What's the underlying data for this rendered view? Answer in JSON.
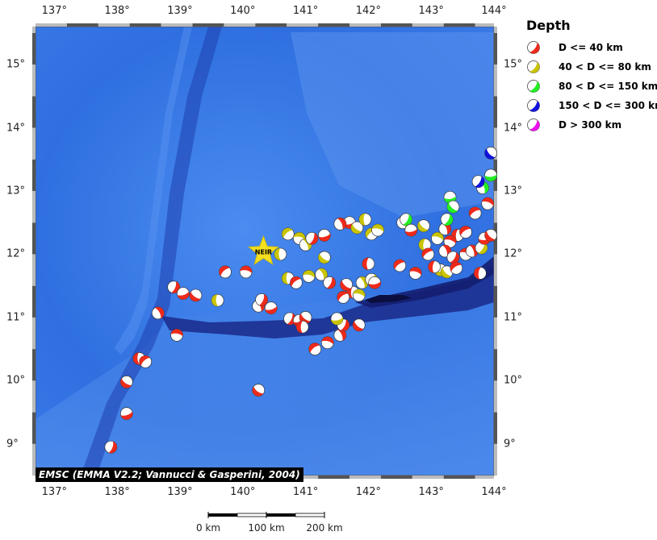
{
  "map": {
    "lon_range": [
      136.7,
      144.0
    ],
    "lat_range": [
      8.5,
      15.6
    ],
    "lon_ticks": [
      "137°",
      "138°",
      "139°",
      "140°",
      "141°",
      "142°",
      "143°",
      "144°"
    ],
    "lat_ticks": [
      "9°",
      "10°",
      "11°",
      "12°",
      "13°",
      "14°",
      "15°"
    ],
    "credit": "EMSC (EMMA V2.2; Vannucci & Gasperini, 2004)",
    "station": {
      "name": "NEIR",
      "lon": 140.33,
      "lat": 12.04
    },
    "colors": {
      "ocean": "#2f6fe0",
      "deep": "#1c2a8c",
      "shallow": "#6aa0f0"
    }
  },
  "legend": {
    "title": "Depth",
    "items": [
      {
        "label": "D <= 40 km",
        "color": "#ee2a1a"
      },
      {
        "label": "40 < D <= 80 km",
        "color": "#c9c400"
      },
      {
        "label": "80 < D <= 150 km",
        "color": "#22ee22"
      },
      {
        "label": "150 < D <= 300 km",
        "color": "#1111dd"
      },
      {
        "label": "D > 300 km",
        "color": "#ee11ee"
      }
    ]
  },
  "scale_bar": {
    "labels": [
      "0 km",
      "100 km",
      "200 km"
    ]
  },
  "events": [
    {
      "lon": 137.9,
      "lat": 8.95,
      "d": "a"
    },
    {
      "lon": 138.15,
      "lat": 9.48,
      "d": "a"
    },
    {
      "lon": 138.15,
      "lat": 9.98,
      "d": "a"
    },
    {
      "lon": 138.35,
      "lat": 10.35,
      "d": "a"
    },
    {
      "lon": 138.45,
      "lat": 10.3,
      "d": "a"
    },
    {
      "lon": 138.95,
      "lat": 10.72,
      "d": "a"
    },
    {
      "lon": 138.65,
      "lat": 11.07,
      "d": "a"
    },
    {
      "lon": 138.9,
      "lat": 11.48,
      "d": "a"
    },
    {
      "lon": 139.05,
      "lat": 11.38,
      "d": "a"
    },
    {
      "lon": 139.25,
      "lat": 11.35,
      "d": "a"
    },
    {
      "lon": 139.6,
      "lat": 11.27,
      "d": "b"
    },
    {
      "lon": 139.72,
      "lat": 11.72,
      "d": "a"
    },
    {
      "lon": 140.05,
      "lat": 11.72,
      "d": "a"
    },
    {
      "lon": 140.25,
      "lat": 11.18,
      "d": "a"
    },
    {
      "lon": 140.3,
      "lat": 11.28,
      "d": "a"
    },
    {
      "lon": 140.45,
      "lat": 11.15,
      "d": "a"
    },
    {
      "lon": 140.25,
      "lat": 9.85,
      "d": "a"
    },
    {
      "lon": 140.6,
      "lat": 12.0,
      "d": "b"
    },
    {
      "lon": 140.72,
      "lat": 12.32,
      "d": "b"
    },
    {
      "lon": 140.9,
      "lat": 12.25,
      "d": "b"
    },
    {
      "lon": 141.0,
      "lat": 12.15,
      "d": "b"
    },
    {
      "lon": 141.1,
      "lat": 12.25,
      "d": "a"
    },
    {
      "lon": 141.3,
      "lat": 12.3,
      "d": "a"
    },
    {
      "lon": 141.3,
      "lat": 11.95,
      "d": "b"
    },
    {
      "lon": 140.72,
      "lat": 11.62,
      "d": "b"
    },
    {
      "lon": 140.85,
      "lat": 11.55,
      "d": "a"
    },
    {
      "lon": 141.05,
      "lat": 11.65,
      "d": "b"
    },
    {
      "lon": 141.25,
      "lat": 11.68,
      "d": "b"
    },
    {
      "lon": 141.38,
      "lat": 11.55,
      "d": "a"
    },
    {
      "lon": 141.7,
      "lat": 12.5,
      "d": "a"
    },
    {
      "lon": 141.82,
      "lat": 12.42,
      "d": "b"
    },
    {
      "lon": 141.95,
      "lat": 12.55,
      "d": "b"
    },
    {
      "lon": 142.05,
      "lat": 12.32,
      "d": "b"
    },
    {
      "lon": 142.15,
      "lat": 12.38,
      "d": "b"
    },
    {
      "lon": 141.55,
      "lat": 12.48,
      "d": "a"
    },
    {
      "lon": 140.75,
      "lat": 10.98,
      "d": "a"
    },
    {
      "lon": 140.9,
      "lat": 10.95,
      "d": "a"
    },
    {
      "lon": 141.0,
      "lat": 11.0,
      "d": "a"
    },
    {
      "lon": 140.95,
      "lat": 10.85,
      "d": "a"
    },
    {
      "lon": 141.15,
      "lat": 10.5,
      "d": "a"
    },
    {
      "lon": 141.35,
      "lat": 10.6,
      "d": "a"
    },
    {
      "lon": 141.55,
      "lat": 10.72,
      "d": "a"
    },
    {
      "lon": 141.6,
      "lat": 10.88,
      "d": "a"
    },
    {
      "lon": 141.5,
      "lat": 10.98,
      "d": "b"
    },
    {
      "lon": 141.85,
      "lat": 10.88,
      "d": "a"
    },
    {
      "lon": 141.75,
      "lat": 11.4,
      "d": "a"
    },
    {
      "lon": 141.6,
      "lat": 11.32,
      "d": "a"
    },
    {
      "lon": 141.85,
      "lat": 11.35,
      "d": "b"
    },
    {
      "lon": 141.9,
      "lat": 11.55,
      "d": "b"
    },
    {
      "lon": 142.05,
      "lat": 11.6,
      "d": "b"
    },
    {
      "lon": 142.1,
      "lat": 11.55,
      "d": "a"
    },
    {
      "lon": 141.65,
      "lat": 11.52,
      "d": "a"
    },
    {
      "lon": 142.0,
      "lat": 11.85,
      "d": "a"
    },
    {
      "lon": 142.5,
      "lat": 11.82,
      "d": "a"
    },
    {
      "lon": 142.75,
      "lat": 11.7,
      "d": "a"
    },
    {
      "lon": 142.55,
      "lat": 12.5,
      "d": "b"
    },
    {
      "lon": 142.6,
      "lat": 12.55,
      "d": "c"
    },
    {
      "lon": 142.68,
      "lat": 12.38,
      "d": "a"
    },
    {
      "lon": 142.88,
      "lat": 12.45,
      "d": "b"
    },
    {
      "lon": 142.9,
      "lat": 12.15,
      "d": "b"
    },
    {
      "lon": 142.95,
      "lat": 12.0,
      "d": "a"
    },
    {
      "lon": 143.1,
      "lat": 12.25,
      "d": "b"
    },
    {
      "lon": 143.22,
      "lat": 12.4,
      "d": "a"
    },
    {
      "lon": 143.25,
      "lat": 12.55,
      "d": "c"
    },
    {
      "lon": 143.3,
      "lat": 12.9,
      "d": "c"
    },
    {
      "lon": 143.35,
      "lat": 12.75,
      "d": "c"
    },
    {
      "lon": 143.42,
      "lat": 12.3,
      "d": "a"
    },
    {
      "lon": 143.55,
      "lat": 12.35,
      "d": "a"
    },
    {
      "lon": 143.3,
      "lat": 12.2,
      "d": "a"
    },
    {
      "lon": 143.22,
      "lat": 12.05,
      "d": "a"
    },
    {
      "lon": 143.35,
      "lat": 11.95,
      "d": "a"
    },
    {
      "lon": 143.15,
      "lat": 11.75,
      "d": "b"
    },
    {
      "lon": 143.25,
      "lat": 11.72,
      "d": "b"
    },
    {
      "lon": 143.05,
      "lat": 11.8,
      "d": "a"
    },
    {
      "lon": 143.4,
      "lat": 11.78,
      "d": "a"
    },
    {
      "lon": 143.55,
      "lat": 12.0,
      "d": "a"
    },
    {
      "lon": 143.65,
      "lat": 12.05,
      "d": "a"
    },
    {
      "lon": 143.8,
      "lat": 12.1,
      "d": "b"
    },
    {
      "lon": 143.85,
      "lat": 12.25,
      "d": "a"
    },
    {
      "lon": 143.95,
      "lat": 12.3,
      "d": "a"
    },
    {
      "lon": 143.78,
      "lat": 11.7,
      "d": "a"
    },
    {
      "lon": 143.7,
      "lat": 12.65,
      "d": "a"
    },
    {
      "lon": 143.9,
      "lat": 12.8,
      "d": "a"
    },
    {
      "lon": 143.82,
      "lat": 13.05,
      "d": "c"
    },
    {
      "lon": 143.75,
      "lat": 13.15,
      "d": "d"
    },
    {
      "lon": 143.95,
      "lat": 13.25,
      "d": "c"
    },
    {
      "lon": 143.95,
      "lat": 13.6,
      "d": "d"
    }
  ]
}
